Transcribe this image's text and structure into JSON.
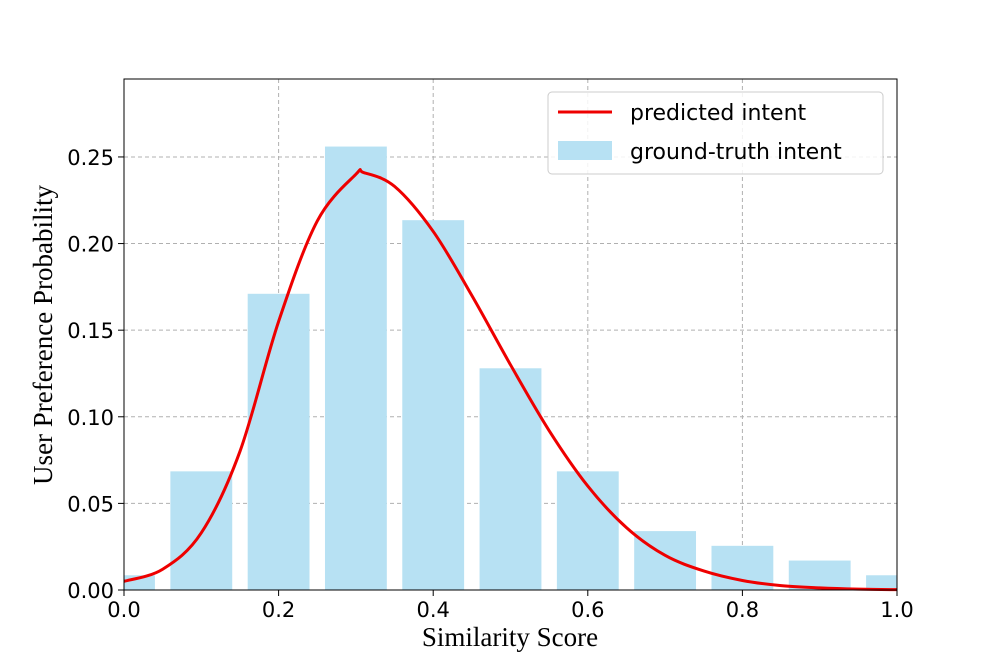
{
  "chart_data": {
    "type": "bar",
    "title": "",
    "xlabel": "Similarity Score",
    "ylabel": "User Preference Probability",
    "xlim": [
      0.0,
      1.0
    ],
    "ylim": [
      0.0,
      0.295
    ],
    "grid": true,
    "legend_position": "top-right",
    "x_ticks": [
      {
        "value": 0.0,
        "label": "0.0"
      },
      {
        "value": 0.2,
        "label": "0.2"
      },
      {
        "value": 0.4,
        "label": "0.4"
      },
      {
        "value": 0.6,
        "label": "0.6"
      },
      {
        "value": 0.8,
        "label": "0.8"
      },
      {
        "value": 1.0,
        "label": "1.0"
      }
    ],
    "y_ticks": [
      {
        "value": 0.0,
        "label": "0.00"
      },
      {
        "value": 0.05,
        "label": "0.05"
      },
      {
        "value": 0.1,
        "label": "0.10"
      },
      {
        "value": 0.15,
        "label": "0.15"
      },
      {
        "value": 0.2,
        "label": "0.20"
      },
      {
        "value": 0.25,
        "label": "0.25"
      }
    ],
    "series": [
      {
        "name": "ground-truth intent",
        "type": "bar",
        "color": "#b7e1f3",
        "bar_width": 0.08,
        "x": [
          0.0,
          0.1,
          0.2,
          0.3,
          0.4,
          0.5,
          0.6,
          0.7,
          0.8,
          0.9,
          1.0
        ],
        "values": [
          0.0085,
          0.0685,
          0.171,
          0.256,
          0.2135,
          0.128,
          0.0685,
          0.034,
          0.0255,
          0.017,
          0.0085
        ]
      },
      {
        "name": "predicted intent",
        "type": "line",
        "color": "#ee0000",
        "x": [
          0.0,
          0.05,
          0.1,
          0.15,
          0.2,
          0.25,
          0.3,
          0.31,
          0.35,
          0.4,
          0.45,
          0.5,
          0.55,
          0.6,
          0.65,
          0.7,
          0.75,
          0.8,
          0.85,
          0.9,
          0.95,
          1.0
        ],
        "values": [
          0.005,
          0.012,
          0.033,
          0.08,
          0.155,
          0.213,
          0.24,
          0.241,
          0.233,
          0.207,
          0.17,
          0.13,
          0.092,
          0.06,
          0.036,
          0.02,
          0.011,
          0.0055,
          0.0025,
          0.0012,
          0.0005,
          0.0002
        ]
      }
    ]
  }
}
